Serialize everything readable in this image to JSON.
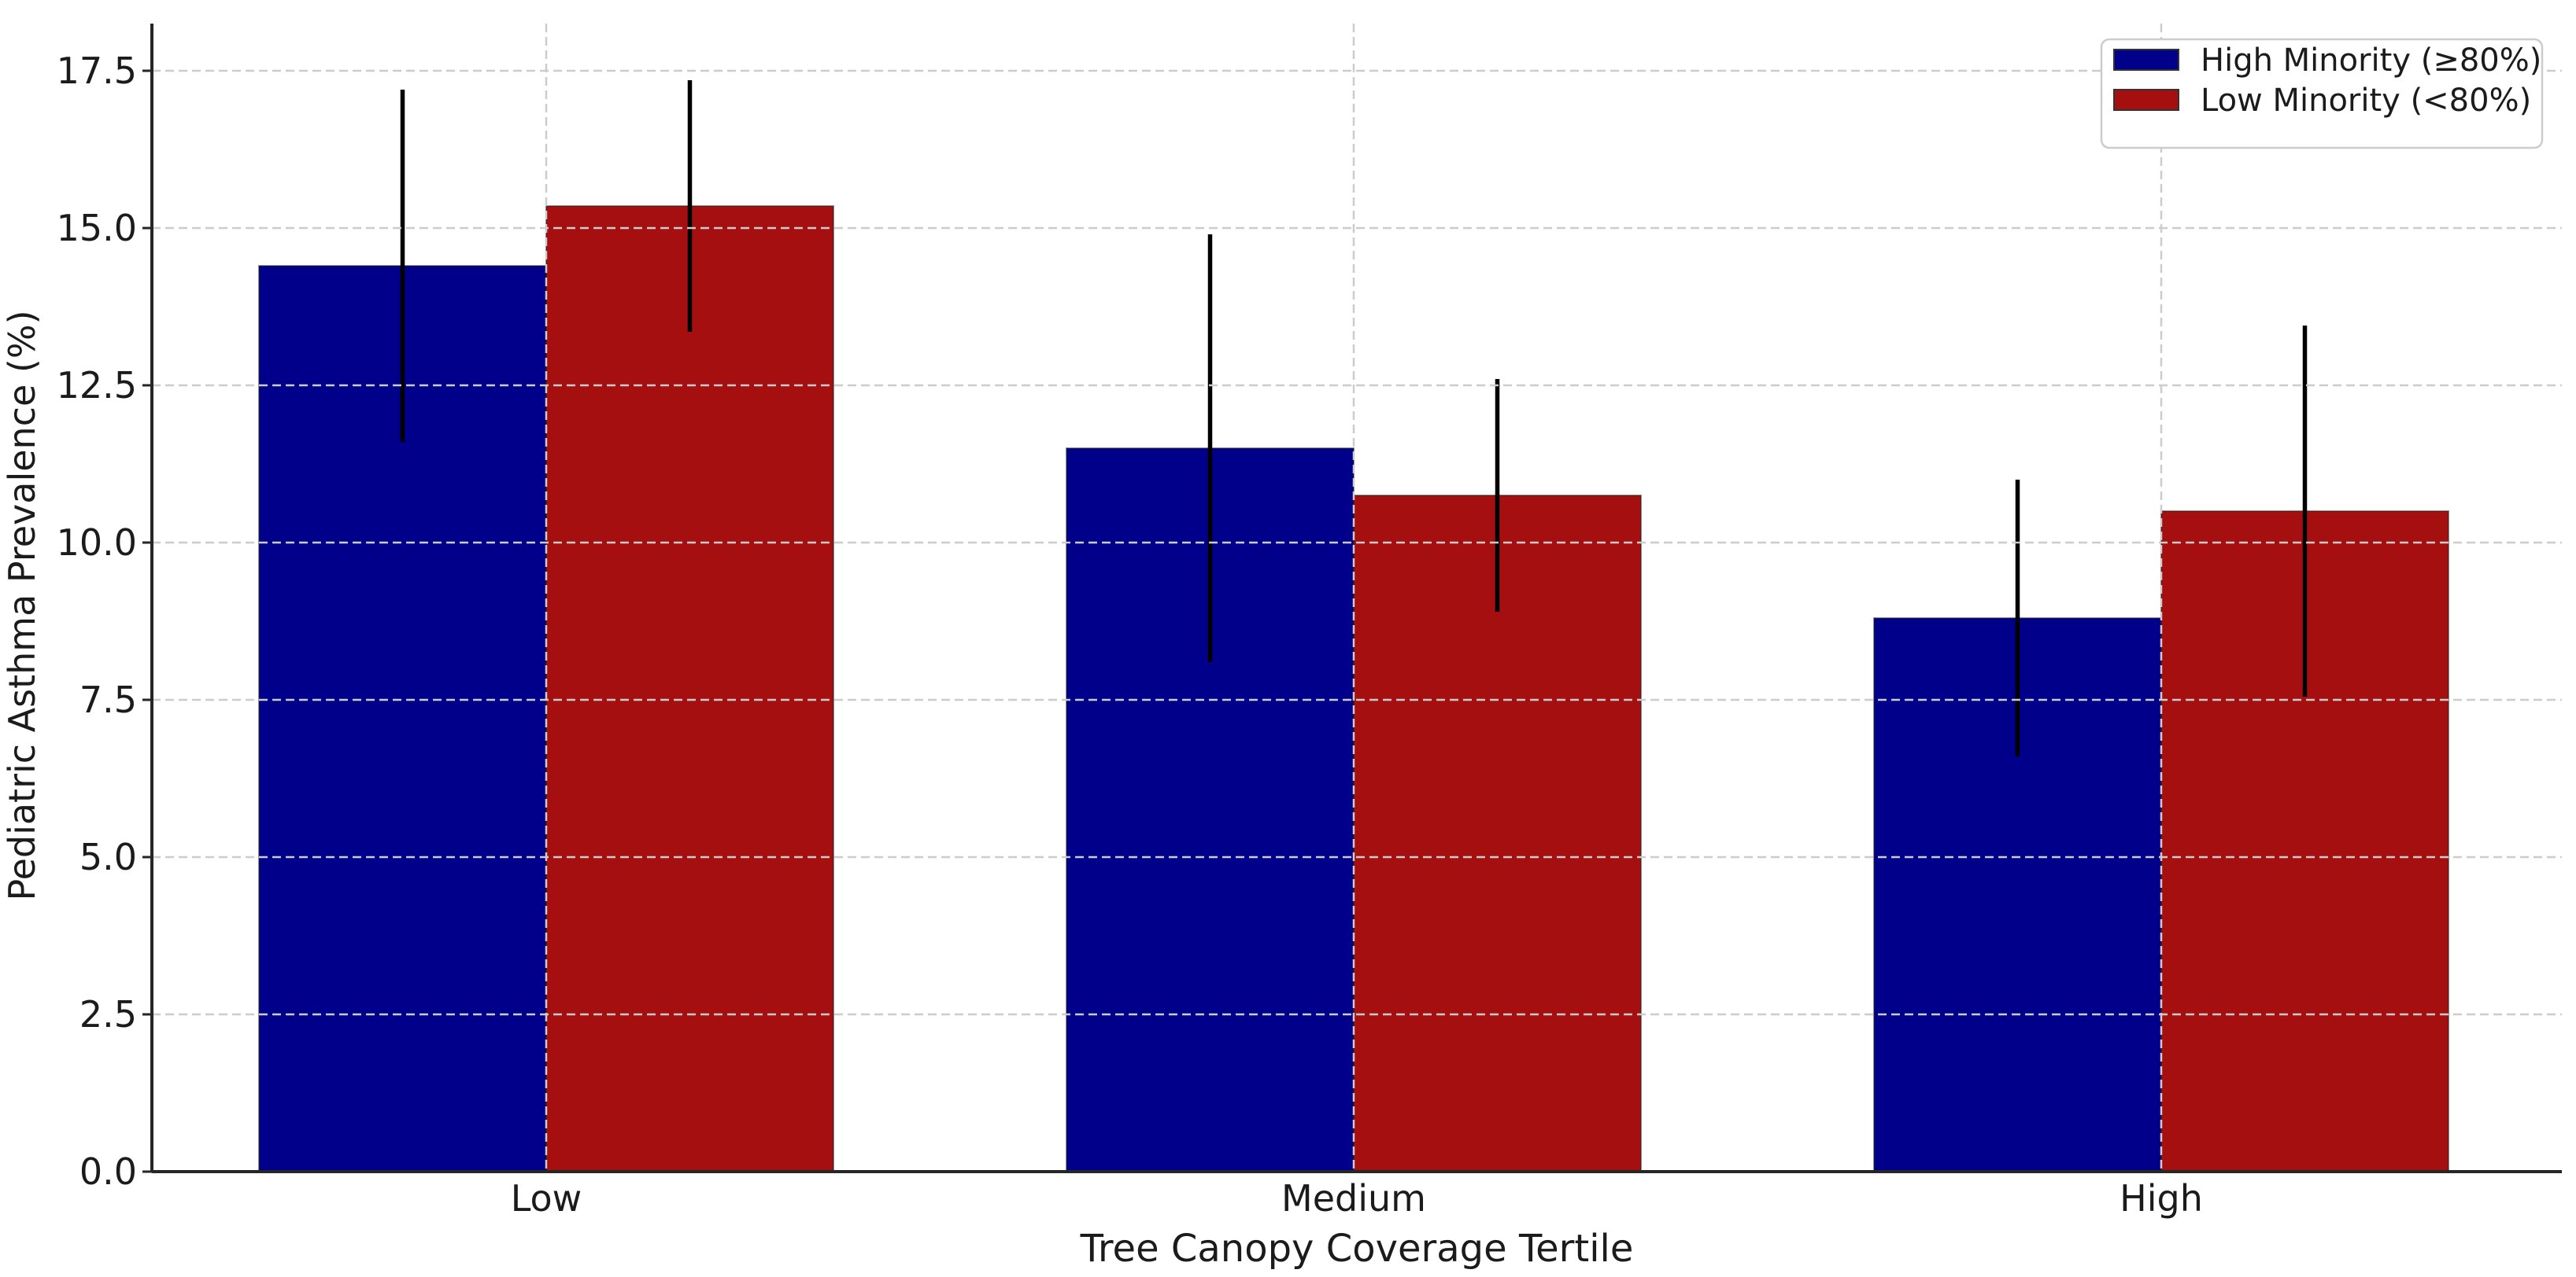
{
  "chart_data": {
    "type": "bar",
    "title": "",
    "xlabel": "Tree Canopy Coverage Tertile",
    "ylabel": "Pediatric Asthma Prevalence (%)",
    "categories": [
      "Low",
      "Medium",
      "High"
    ],
    "series": [
      {
        "name": "High Minority (≥80%)",
        "color": "#00008B",
        "values": [
          14.4,
          11.5,
          8.8
        ],
        "errors": [
          2.8,
          3.4,
          2.2
        ]
      },
      {
        "name": "Low Minority (<80%)",
        "color": "#A50F0F",
        "values": [
          15.35,
          10.75,
          10.5
        ],
        "errors": [
          2.0,
          1.85,
          2.95
        ]
      }
    ],
    "ylim": [
      0,
      18.25
    ],
    "yticks": [
      0.0,
      2.5,
      5.0,
      7.5,
      10.0,
      12.5,
      15.0,
      17.5
    ],
    "ytick_labels": [
      "0.0",
      "2.5",
      "5.0",
      "7.5",
      "10.0",
      "12.5",
      "15.0",
      "17.5"
    ],
    "bar_width_units": 0.35,
    "error_bar_color": "#000000",
    "grid": true,
    "grid_style": "dashed",
    "grid_color": "#cccccc",
    "spine_color": "#262626",
    "legend_position": "upper right",
    "plot_background": "#ffffff"
  }
}
